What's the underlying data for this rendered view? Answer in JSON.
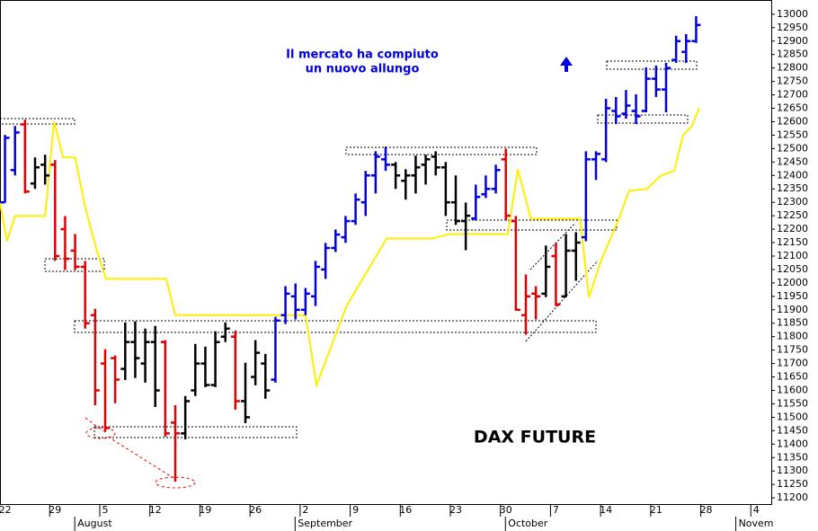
{
  "chart_data": {
    "type": "ohlc",
    "annotations": [
      "Il mercato ha compiuto",
      "un nuovo allungo"
    ],
    "label": "DAX FUTURE",
    "xlim": [
      -0.5,
      76.5
    ],
    "xticks": [
      {
        "value": 0,
        "label": "22"
      },
      {
        "value": 5,
        "label": "29"
      },
      {
        "value": 10,
        "label": "5"
      },
      {
        "value": 15,
        "label": "12"
      },
      {
        "value": 20,
        "label": "19"
      },
      {
        "value": 25,
        "label": "26"
      },
      {
        "value": 30,
        "label": "2"
      },
      {
        "value": 35,
        "label": "9"
      },
      {
        "value": 40,
        "label": "16"
      },
      {
        "value": 45,
        "label": "23"
      },
      {
        "value": 50,
        "label": "30"
      },
      {
        "value": 55,
        "label": "7"
      },
      {
        "value": 60,
        "label": "14"
      },
      {
        "value": 65,
        "label": "21"
      },
      {
        "value": 70,
        "label": "28"
      },
      {
        "value": 75,
        "label": "4"
      }
    ],
    "months": [
      {
        "value": 7.5,
        "label": "August"
      },
      {
        "value": 29.5,
        "label": "September"
      },
      {
        "value": 50.5,
        "label": "October"
      },
      {
        "value": 73.5,
        "label": "Novem"
      }
    ],
    "ylim": [
      11177,
      13053
    ],
    "yticks": [
      11200,
      11250,
      11300,
      11350,
      11400,
      11450,
      11500,
      11550,
      11600,
      11650,
      11700,
      11750,
      11800,
      11850,
      11900,
      11950,
      12000,
      12050,
      12100,
      12150,
      12200,
      12250,
      12300,
      12350,
      12400,
      12450,
      12500,
      12550,
      12600,
      12650,
      12700,
      12750,
      12800,
      12850,
      12900,
      12950,
      13000
    ],
    "x": [
      0,
      1,
      2,
      3,
      4,
      5,
      6,
      7,
      8,
      9,
      10,
      11,
      12,
      13,
      14,
      15,
      16,
      17,
      18,
      19,
      20,
      21,
      22,
      23,
      24,
      25,
      26,
      27,
      28,
      29,
      30,
      31,
      32,
      33,
      34,
      35,
      36,
      37,
      38,
      39,
      40,
      41,
      42,
      43,
      44,
      45,
      46,
      47,
      48,
      49,
      50,
      51,
      52,
      53,
      54,
      55,
      56,
      57,
      58,
      59,
      60,
      61,
      62,
      63,
      64,
      65,
      66,
      67,
      68,
      69
    ],
    "open": [
      12300,
      12420,
      12590,
      12370,
      12440,
      12440,
      12200,
      12120,
      12060,
      11880,
      11700,
      11720,
      11680,
      11780,
      11700,
      11780,
      11780,
      11480,
      11440,
      11600,
      11700,
      11620,
      11800,
      11800,
      11560,
      11650,
      11700,
      11640,
      11880,
      11950,
      11900,
      11950,
      12050,
      12130,
      12170,
      12230,
      12300,
      12400,
      12460,
      12440,
      12380,
      12400,
      12440,
      12470,
      12430,
      12300,
      12230,
      12240,
      12330,
      12350,
      12460,
      12230,
      11880,
      11960,
      11960,
      12100,
      11950,
      12120,
      12170,
      12460,
      12460,
      12640,
      12630,
      12640,
      12640,
      12760,
      12720,
      12830,
      12860,
      12900
    ],
    "high": [
      12551,
      12584,
      12608,
      12467,
      12477,
      12457,
      12249,
      12182,
      12082,
      11904,
      11753,
      11730,
      11853,
      11857,
      11830,
      11840,
      11787,
      11545,
      11579,
      11773,
      11763,
      11820,
      11853,
      11823,
      11703,
      11787,
      11736,
      11874,
      11988,
      11998,
      11981,
      12082,
      12149,
      12199,
      12249,
      12333,
      12417,
      12490,
      12507,
      12450,
      12423,
      12474,
      12477,
      12490,
      12450,
      12400,
      12299,
      12366,
      12400,
      12440,
      12500,
      12249,
      12031,
      11988,
      12139,
      12149,
      12182,
      12189,
      12490,
      12490,
      12685,
      12692,
      12718,
      12702,
      12802,
      12809,
      12819,
      12920,
      12926,
      12993
    ],
    "low": [
      12299,
      12400,
      12333,
      12350,
      12366,
      12082,
      12048,
      12048,
      11830,
      11545,
      11445,
      11552,
      11639,
      11646,
      11629,
      11538,
      11428,
      11260,
      11418,
      11579,
      11612,
      11612,
      11780,
      11528,
      11478,
      11619,
      11569,
      11629,
      11847,
      11864,
      11880,
      11914,
      12015,
      12115,
      12149,
      12216,
      12249,
      12333,
      12417,
      12350,
      12310,
      12333,
      12366,
      12400,
      12249,
      12216,
      12122,
      12232,
      12316,
      12333,
      12232,
      11897,
      11807,
      11864,
      11947,
      11914,
      11947,
      12008,
      12155,
      12383,
      12450,
      12591,
      12611,
      12591,
      12635,
      12692,
      12635,
      12819,
      12819,
      12893
    ],
    "close": [
      12540,
      12560,
      12340,
      12430,
      12400,
      12100,
      12090,
      12060,
      11850,
      11600,
      11460,
      11640,
      11780,
      11720,
      11780,
      11600,
      11440,
      11440,
      11560,
      11700,
      11620,
      11780,
      11830,
      11560,
      11500,
      11740,
      11600,
      11860,
      11960,
      11900,
      11960,
      12060,
      12130,
      12180,
      12230,
      12310,
      12400,
      12470,
      12440,
      12400,
      12400,
      12430,
      12460,
      12430,
      12300,
      12230,
      12250,
      12320,
      12350,
      12420,
      12250,
      11900,
      11950,
      11950,
      12060,
      11920,
      12120,
      12150,
      12460,
      12480,
      12650,
      12620,
      12660,
      12620,
      12760,
      12720,
      12800,
      12900,
      12900,
      12960
    ],
    "colors": [
      "#0000e0",
      "#0000e0",
      "#e00000",
      "#000000",
      "#000000",
      "#e00000",
      "#e00000",
      "#e00000",
      "#e00000",
      "#e00000",
      "#e00000",
      "#e00000",
      "#000000",
      "#000000",
      "#000000",
      "#000000",
      "#e00000",
      "#e00000",
      "#000000",
      "#000000",
      "#000000",
      "#000000",
      "#000000",
      "#e00000",
      "#000000",
      "#000000",
      "#000000",
      "#0000e0",
      "#0000e0",
      "#0000e0",
      "#0000e0",
      "#0000e0",
      "#0000e0",
      "#0000e0",
      "#0000e0",
      "#0000e0",
      "#0000e0",
      "#0000e0",
      "#0000e0",
      "#000000",
      "#000000",
      "#000000",
      "#000000",
      "#000000",
      "#000000",
      "#000000",
      "#000000",
      "#0000e0",
      "#0000e0",
      "#0000e0",
      "#e00000",
      "#e00000",
      "#e00000",
      "#e00000",
      "#000000",
      "#e00000",
      "#000000",
      "#000000",
      "#0000e0",
      "#0000e0",
      "#0000e0",
      "#0000e0",
      "#0000e0",
      "#0000e0",
      "#0000e0",
      "#0000e0",
      "#0000e0",
      "#0000e0",
      "#0000e0",
      "#0000e0"
    ],
    "stop_line": {
      "color": "#ffee00",
      "x": [
        -0.5,
        0.2,
        1.0,
        4.0,
        4.9,
        5.8,
        7.0,
        8.0,
        9.2,
        10.1,
        16.1,
        17.0,
        30.0,
        31.1,
        34.1,
        38.1,
        42.6,
        44.4,
        50.2,
        51.2,
        52.5,
        57.4,
        58.3,
        59.5,
        61.4,
        62.3,
        64.1,
        65.5,
        66.8,
        67.7,
        68.6,
        69.3
      ],
      "values": [
        12299,
        12155,
        12249,
        12249,
        12601,
        12467,
        12467,
        12283,
        12115,
        12015,
        12015,
        11880,
        11880,
        11619,
        11914,
        12165,
        12165,
        12182,
        12182,
        12423,
        12239,
        12239,
        11947,
        12082,
        12249,
        12343,
        12350,
        12400,
        12417,
        12551,
        12584,
        12651
      ]
    }
  }
}
